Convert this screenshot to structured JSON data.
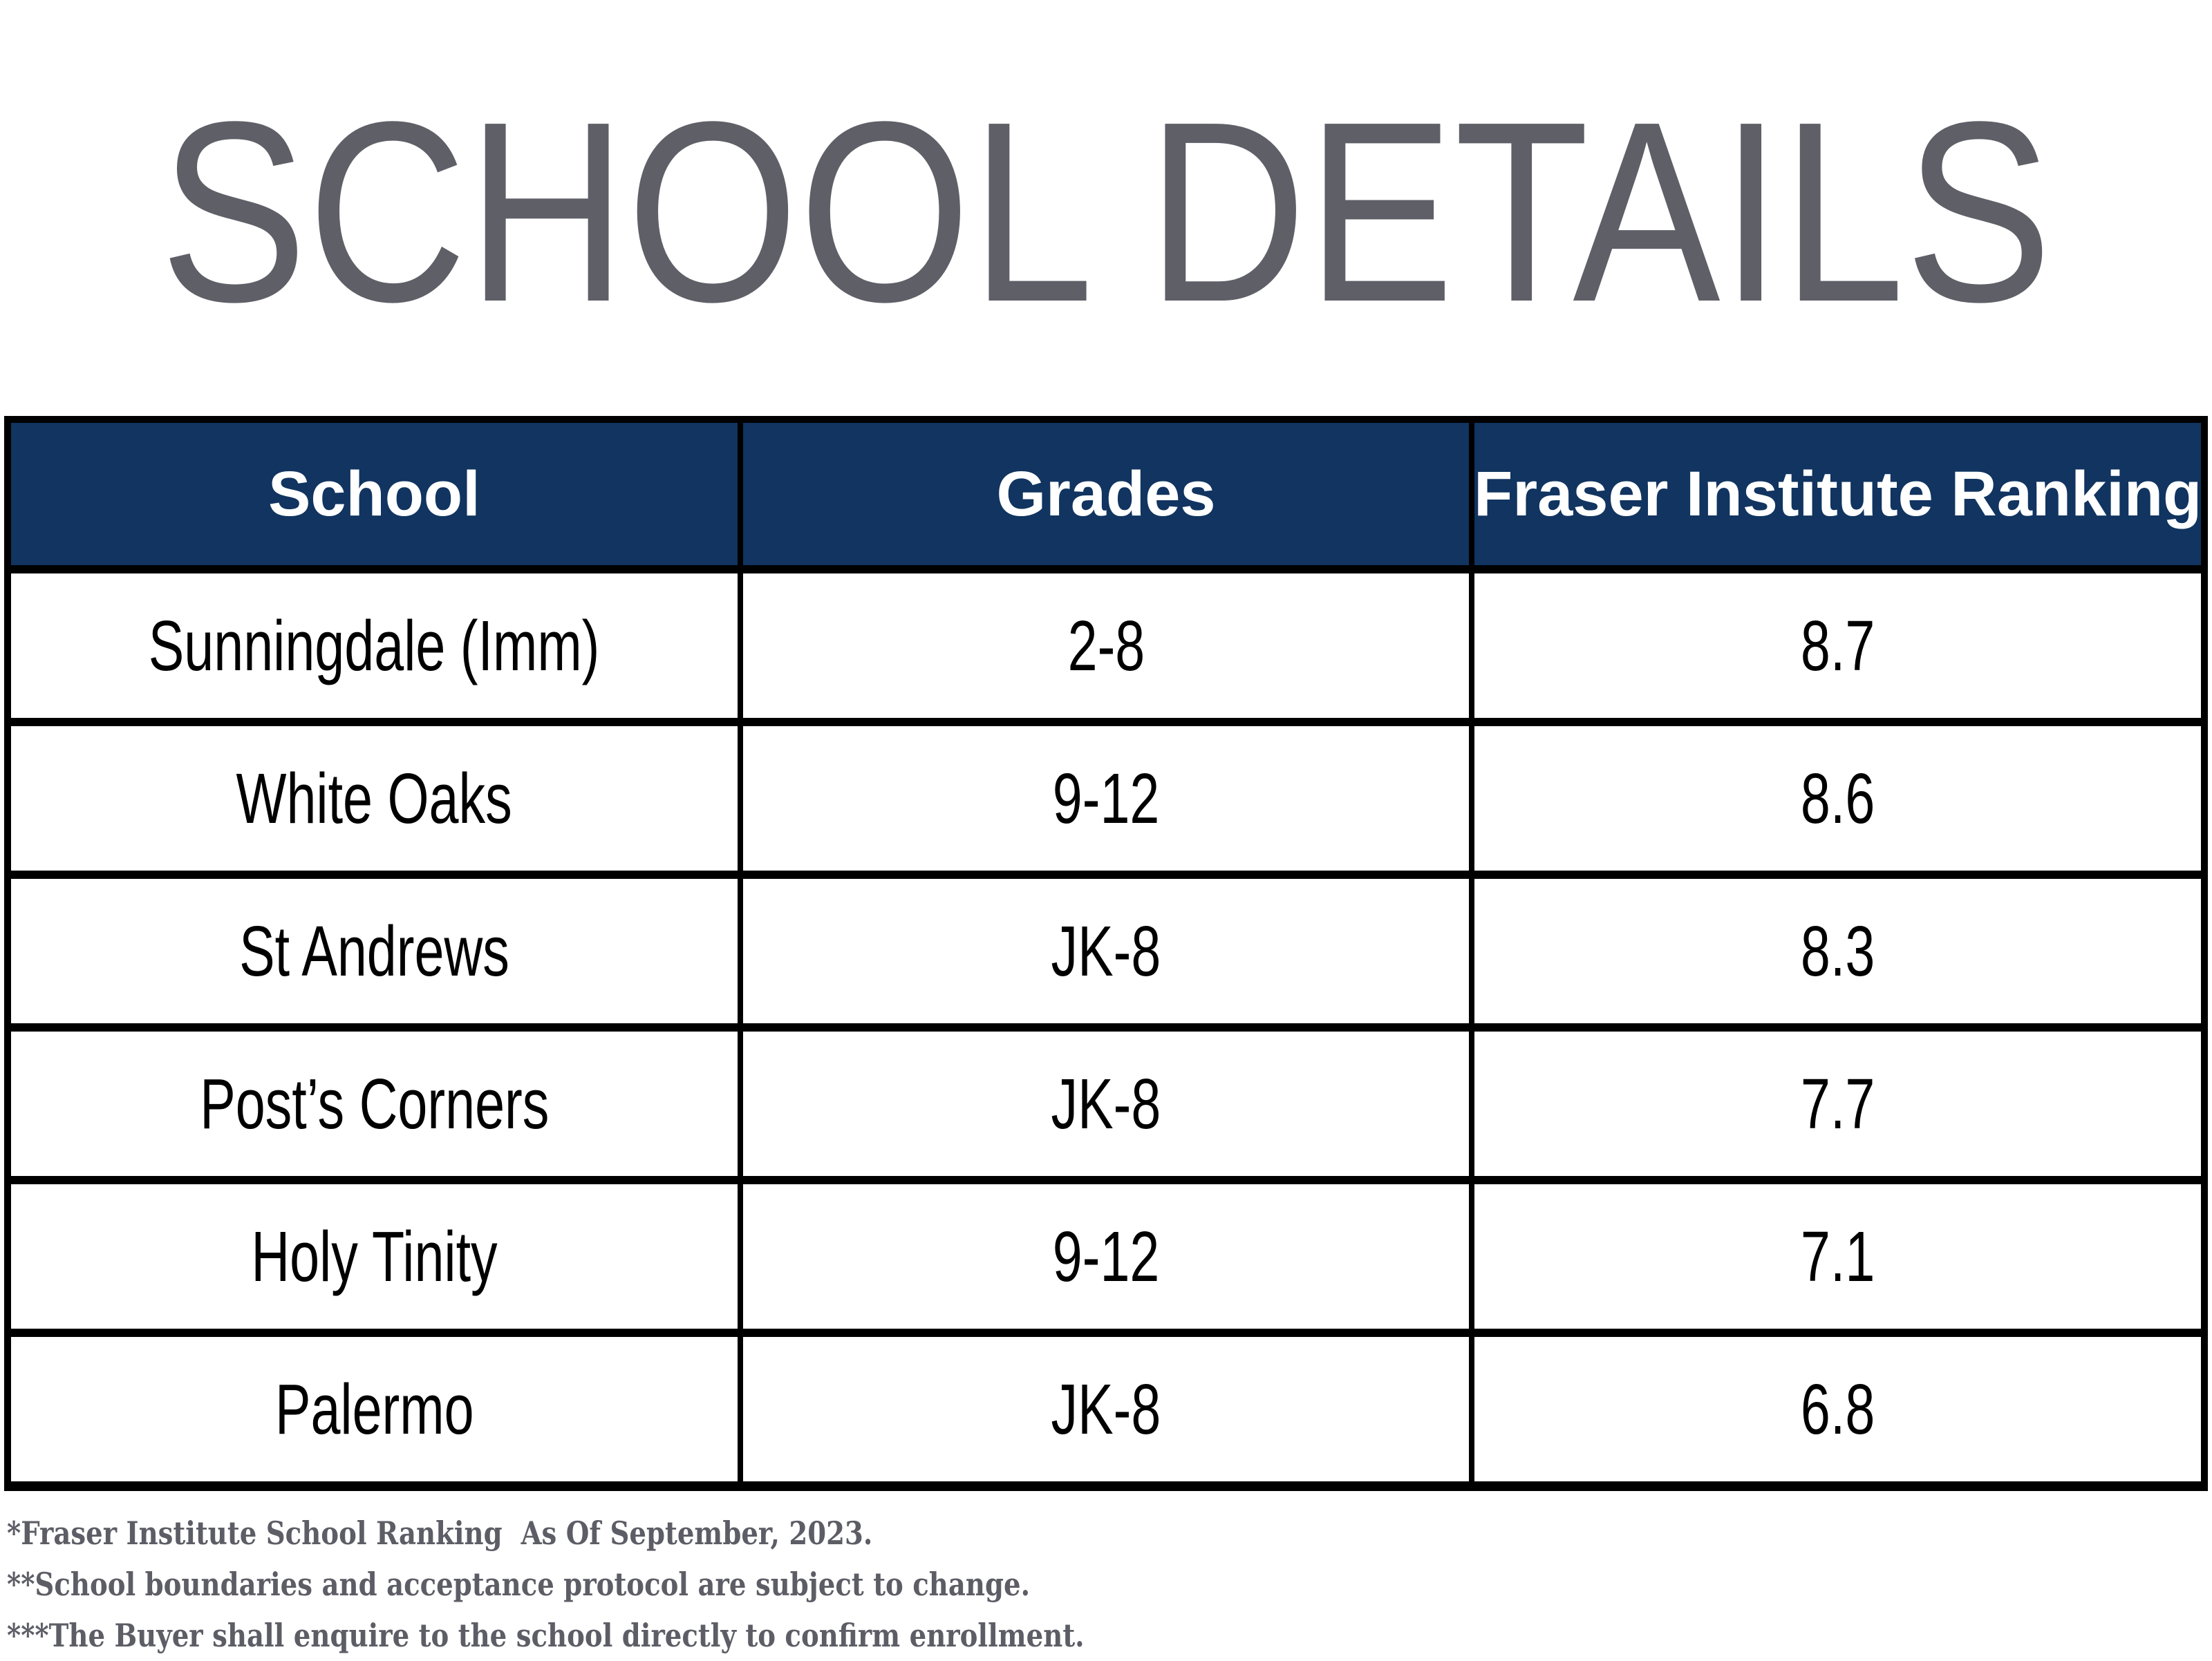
{
  "title": "SCHOOL DETAILS",
  "table": {
    "headers": [
      "School",
      "Grades",
      "Fraser Institute Ranking"
    ],
    "rows": [
      [
        "Sunningdale (Imm)",
        "2-8",
        "8.7"
      ],
      [
        "White Oaks",
        "9-12",
        "8.6"
      ],
      [
        "St Andrews",
        "JK-8",
        "8.3"
      ],
      [
        "Post’s Corners",
        "JK-8",
        "7.7"
      ],
      [
        "Holy Tinity",
        "9-12",
        "7.1"
      ],
      [
        "Palermo",
        "JK-8",
        "6.8"
      ]
    ]
  },
  "footnotes": [
    "*Fraser Institute School Ranking  As Of September, 2023.",
    "**School boundaries and acceptance protocol are subject to change.",
    "***The Buyer shall enquire to the school directly to confirm enrollment."
  ],
  "colors": {
    "header_bg": "#113460",
    "header_text": "#ffffff",
    "title": "#5f5f68",
    "note": "#5d5d66",
    "border": "#000000",
    "cell_text": "#000000"
  }
}
